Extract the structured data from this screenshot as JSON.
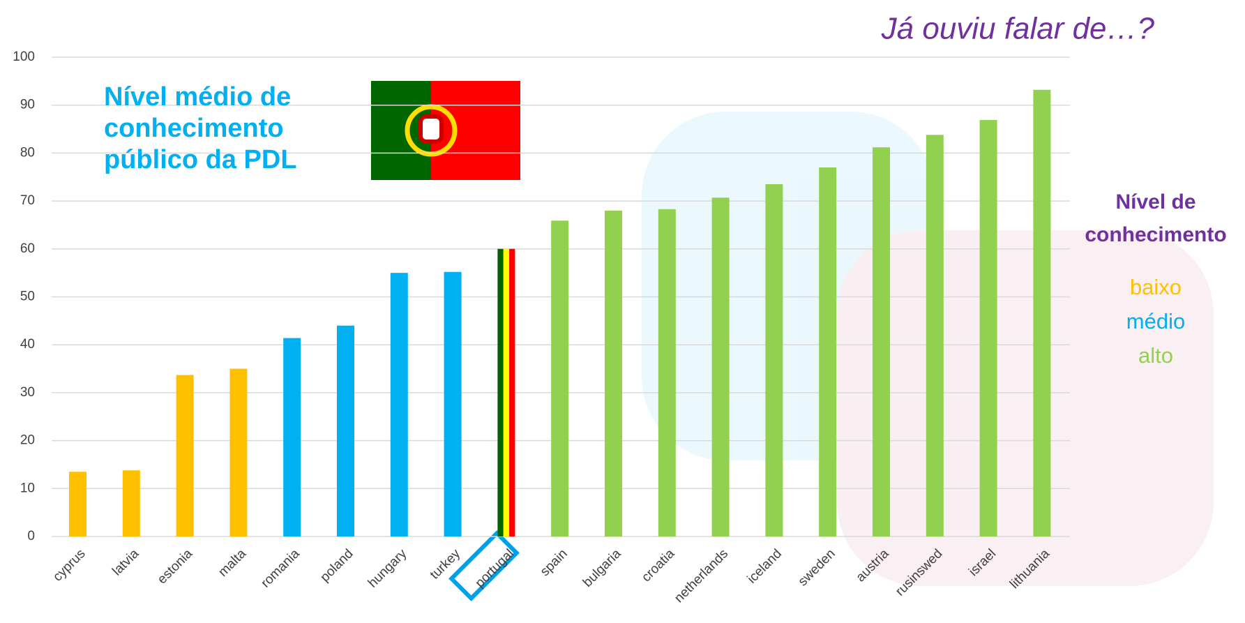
{
  "chart_data": {
    "type": "bar",
    "title": [
      "Nível médio de",
      "conhecimento",
      "público da PDL"
    ],
    "subtitle": "Já ouviu falar de…?",
    "categories": [
      "cyprus",
      "latvia",
      "estonia",
      "malta",
      "romania",
      "poland",
      "hungary",
      "turkey",
      "portugal",
      "spain",
      "bulgaria",
      "croatia",
      "netherlands",
      "iceland",
      "sweden",
      "austria",
      "rusinswed",
      "israel",
      "lithuania"
    ],
    "values": [
      13.5,
      13.8,
      33.7,
      35,
      41.4,
      44,
      55,
      55.2,
      60,
      65.9,
      68,
      68.3,
      70.7,
      73.5,
      77,
      81.2,
      83.8,
      86.9,
      93.2
    ],
    "colors": [
      "#ffc000",
      "#ffc000",
      "#ffc000",
      "#ffc000",
      "#00b0f0",
      "#00b0f0",
      "#00b0f0",
      "#00b0f0",
      [
        "#006400",
        "#ffff00",
        "#ff0000"
      ],
      "#92d050",
      "#92d050",
      "#92d050",
      "#92d050",
      "#92d050",
      "#92d050",
      "#92d050",
      "#92d050",
      "#92d050",
      "#92d050"
    ],
    "ylim": [
      0,
      100
    ],
    "yticks": [
      0,
      10,
      20,
      30,
      40,
      50,
      60,
      70,
      80,
      90,
      100
    ],
    "grid": true,
    "legend": {
      "title": [
        "Nível de",
        "conhecimento"
      ],
      "entries": [
        {
          "name": "baixo",
          "color": "#ffc000"
        },
        {
          "name": "médio",
          "color": "#00b0f0"
        },
        {
          "name": "alto",
          "color": "#92d050"
        }
      ]
    }
  }
}
